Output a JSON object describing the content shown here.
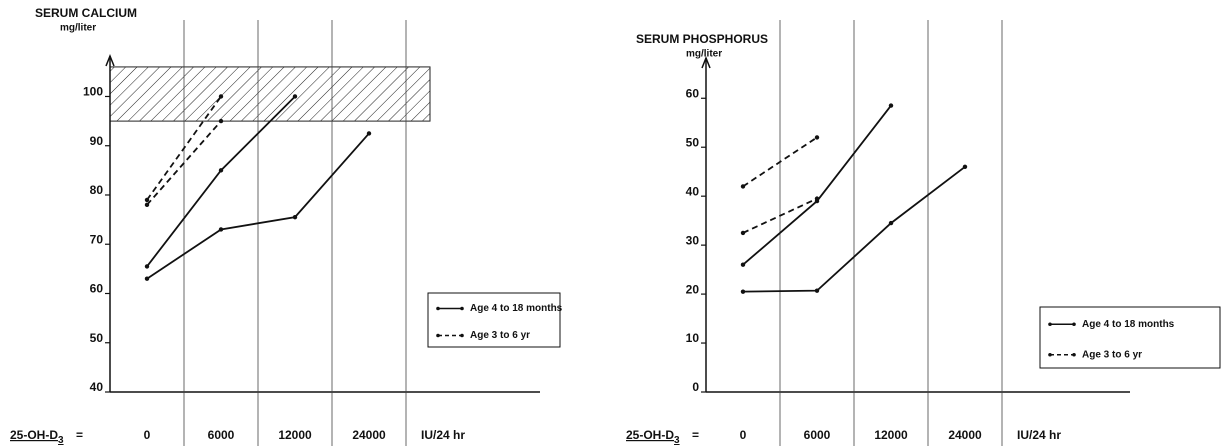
{
  "chart_data": [
    {
      "type": "line",
      "title": "SERUM CALCIUM",
      "ylabel": "mg/liter",
      "xlabel": "25-OH-D",
      "xlabel_sub": "3",
      "xlabel_suffix": "=",
      "x_unit": "IU/24 hr",
      "categories": [
        "0",
        "6000",
        "12000",
        "24000"
      ],
      "ylim": [
        40,
        107
      ],
      "yticks": [
        40,
        50,
        60,
        70,
        80,
        90,
        100
      ],
      "band": [
        95,
        106
      ],
      "legend": [
        {
          "name": "Age 4 to 18 months",
          "dashed": false
        },
        {
          "name": "Age 3 to 6 yr",
          "dashed": true
        }
      ],
      "series": [
        {
          "legend": 0,
          "color": "#111",
          "values": [
            63,
            73,
            75.5,
            92.5
          ]
        },
        {
          "legend": 0,
          "color": "#111",
          "values": [
            65.5,
            85,
            100,
            null
          ]
        },
        {
          "legend": 1,
          "color": "#111",
          "values": [
            79,
            100,
            null,
            null
          ]
        },
        {
          "legend": 1,
          "color": "#111",
          "values": [
            78,
            95,
            null,
            null
          ]
        }
      ]
    },
    {
      "type": "line",
      "title": "SERUM PHOSPHORUS",
      "ylabel": "mg/liter",
      "xlabel": "25-OH-D",
      "xlabel_sub": "3",
      "xlabel_suffix": "=",
      "x_unit": "IU/24 hr",
      "categories": [
        "0",
        "6000",
        "12000",
        "24000"
      ],
      "ylim": [
        0,
        67
      ],
      "yticks": [
        0,
        10,
        20,
        30,
        40,
        50,
        60
      ],
      "legend": [
        {
          "name": "Age 4 to 18 months",
          "dashed": false
        },
        {
          "name": "Age 3 to 6 yr",
          "dashed": true
        }
      ],
      "series": [
        {
          "legend": 0,
          "color": "#111",
          "values": [
            20.5,
            20.7,
            34.5,
            46
          ]
        },
        {
          "legend": 0,
          "color": "#111",
          "values": [
            26,
            39,
            58.5,
            null
          ]
        },
        {
          "legend": 1,
          "color": "#111",
          "values": [
            42,
            52,
            null,
            null
          ]
        },
        {
          "legend": 1,
          "color": "#111",
          "values": [
            32.5,
            39.5,
            null,
            null
          ]
        }
      ]
    }
  ]
}
